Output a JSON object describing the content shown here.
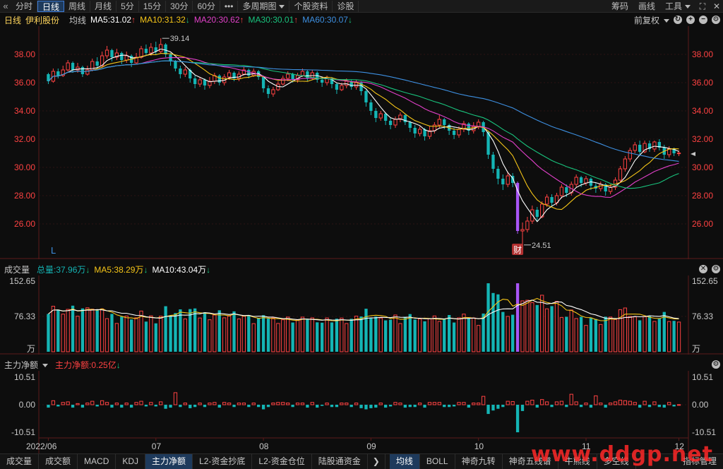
{
  "toolbar": {
    "left": [
      "分时",
      "日线",
      "周线",
      "月线",
      "5分",
      "15分",
      "30分",
      "60分",
      "•••",
      "多周期图",
      "个股资料",
      "诊股"
    ],
    "active_index": 1,
    "right": [
      "筹码",
      "画线",
      "工具"
    ]
  },
  "main_chart": {
    "period": "日线",
    "stock_name": "伊利股份",
    "ma_label": "均线",
    "ma5": "MA5:31.02",
    "ma10": "MA10:31.32",
    "ma20": "MA20:30.62",
    "ma30": "MA30:30.01",
    "ma60": "MA60:30.07",
    "adjust_label": "前复权",
    "high_label": "39.14",
    "low_label": "24.51",
    "cai_marker": "财",
    "l_marker": "L",
    "y_ticks": [
      "38.00",
      "36.00",
      "34.00",
      "32.00",
      "30.00",
      "28.00",
      "26.00"
    ]
  },
  "volume_panel": {
    "title": "成交量",
    "total": "总量:37.96万",
    "ma5": "MA5:38.29万",
    "ma10": "MA10:43.04万",
    "y_ticks": [
      "152.65",
      "76.33",
      "万"
    ]
  },
  "fund_panel": {
    "title": "主力净额",
    "value": "主力净额:0.25亿",
    "y_ticks": [
      "10.51",
      "0.00",
      "-10.51"
    ]
  },
  "x_axis": [
    "2022/06",
    "07",
    "08",
    "09",
    "10",
    "11",
    "12"
  ],
  "bottom_tabs": {
    "group1": [
      "成交量",
      "成交额",
      "MACD",
      "KDJ",
      "主力净额",
      "L2-资金抄底",
      "L2-资金仓位",
      "陆股通资金"
    ],
    "group1_active": 4,
    "group2": [
      "均线",
      "BOLL",
      "神奇九转",
      "神奇五线谱",
      "牛熊线",
      "多空线"
    ],
    "group2_active": 0,
    "right": "指标管理"
  },
  "watermark": "www.ddgp.net",
  "colors": {
    "up": "#ff4242",
    "down": "#14b5b5",
    "ma5": "#ffffff",
    "ma10": "#f5c518",
    "ma20": "#e040c8",
    "ma30": "#19c37d",
    "ma60": "#3d8fe0",
    "purple": "#a855f7"
  },
  "chart_data": {
    "type": "candlestick",
    "ylim": [
      24.0,
      39.5
    ],
    "points": [
      [
        36.6,
        36.1,
        36.7,
        35.9
      ],
      [
        36.1,
        36.8,
        37.0,
        36.0
      ],
      [
        36.8,
        36.5,
        37.0,
        36.3
      ],
      [
        36.5,
        36.9,
        37.2,
        36.4
      ],
      [
        36.9,
        37.4,
        37.6,
        36.8
      ],
      [
        37.4,
        36.9,
        37.5,
        36.7
      ],
      [
        36.9,
        37.1,
        37.4,
        36.7
      ],
      [
        37.1,
        36.6,
        37.2,
        36.4
      ],
      [
        36.6,
        36.9,
        37.2,
        36.5
      ],
      [
        36.9,
        37.5,
        37.7,
        36.8
      ],
      [
        37.5,
        37.2,
        37.8,
        37.0
      ],
      [
        37.2,
        37.9,
        38.2,
        37.1
      ],
      [
        37.9,
        38.3,
        38.6,
        37.7
      ],
      [
        38.3,
        37.8,
        38.4,
        37.5
      ],
      [
        37.8,
        38.1,
        38.4,
        37.6
      ],
      [
        38.1,
        37.6,
        38.2,
        37.3
      ],
      [
        37.6,
        37.9,
        38.2,
        37.4
      ],
      [
        37.9,
        37.4,
        38.0,
        37.1
      ],
      [
        37.4,
        37.8,
        38.1,
        37.3
      ],
      [
        37.8,
        38.4,
        38.6,
        37.7
      ],
      [
        38.4,
        38.1,
        38.7,
        37.9
      ],
      [
        38.1,
        38.5,
        38.8,
        37.9
      ],
      [
        38.5,
        38.2,
        38.9,
        38.0
      ],
      [
        38.2,
        38.7,
        39.14,
        38.1
      ],
      [
        38.7,
        38.0,
        38.8,
        37.8
      ],
      [
        38.0,
        37.5,
        38.1,
        37.2
      ],
      [
        37.5,
        37.0,
        37.6,
        36.8
      ],
      [
        37.0,
        36.6,
        37.2,
        36.3
      ],
      [
        36.6,
        36.9,
        37.1,
        36.4
      ],
      [
        36.9,
        36.3,
        37.0,
        36.0
      ],
      [
        36.3,
        35.9,
        36.5,
        35.6
      ],
      [
        35.9,
        36.2,
        36.4,
        35.7
      ],
      [
        36.2,
        35.8,
        36.3,
        35.5
      ],
      [
        35.8,
        36.1,
        36.4,
        35.6
      ],
      [
        36.1,
        36.5,
        36.7,
        35.9
      ],
      [
        36.5,
        36.0,
        36.6,
        35.8
      ],
      [
        36.0,
        36.4,
        36.6,
        35.8
      ],
      [
        36.4,
        36.7,
        36.9,
        36.2
      ],
      [
        36.7,
        36.3,
        36.8,
        36.1
      ],
      [
        36.3,
        36.6,
        36.8,
        36.1
      ],
      [
        36.6,
        36.9,
        37.1,
        36.5
      ],
      [
        36.9,
        36.5,
        37.0,
        36.3
      ],
      [
        36.5,
        36.8,
        37.0,
        36.4
      ],
      [
        36.8,
        36.4,
        36.9,
        36.2
      ],
      [
        36.4,
        35.6,
        36.5,
        35.3
      ],
      [
        35.6,
        35.2,
        35.8,
        34.9
      ],
      [
        35.2,
        35.5,
        35.7,
        35.0
      ],
      [
        35.5,
        35.9,
        36.1,
        35.4
      ],
      [
        35.9,
        36.3,
        36.5,
        35.8
      ],
      [
        36.3,
        36.6,
        36.8,
        36.1
      ],
      [
        36.6,
        36.2,
        36.7,
        36.0
      ],
      [
        36.2,
        36.5,
        36.7,
        36.0
      ],
      [
        36.5,
        36.8,
        37.0,
        36.4
      ],
      [
        36.8,
        36.3,
        36.9,
        36.1
      ],
      [
        36.3,
        36.7,
        36.9,
        36.2
      ],
      [
        36.7,
        36.2,
        36.8,
        36.0
      ],
      [
        36.2,
        36.0,
        36.4,
        35.7
      ],
      [
        36.0,
        36.3,
        36.5,
        35.8
      ],
      [
        36.3,
        35.9,
        36.4,
        35.6
      ],
      [
        35.9,
        35.5,
        36.0,
        35.2
      ],
      [
        35.5,
        35.8,
        36.0,
        35.4
      ],
      [
        35.8,
        36.1,
        36.3,
        35.6
      ],
      [
        36.1,
        35.7,
        36.2,
        35.5
      ],
      [
        35.7,
        36.0,
        36.2,
        35.5
      ],
      [
        36.0,
        35.4,
        36.1,
        35.1
      ],
      [
        35.4,
        34.6,
        35.5,
        34.3
      ],
      [
        34.6,
        34.0,
        34.8,
        33.7
      ],
      [
        34.0,
        33.5,
        34.2,
        33.2
      ],
      [
        33.5,
        33.8,
        34.0,
        33.3
      ],
      [
        33.8,
        33.3,
        33.9,
        33.0
      ],
      [
        33.3,
        33.0,
        33.5,
        32.7
      ],
      [
        33.0,
        33.4,
        33.6,
        32.8
      ],
      [
        33.4,
        33.7,
        33.9,
        33.2
      ],
      [
        33.7,
        33.2,
        33.8,
        33.0
      ],
      [
        33.2,
        32.8,
        33.3,
        32.5
      ],
      [
        32.8,
        32.4,
        33.0,
        32.1
      ],
      [
        32.4,
        32.7,
        32.9,
        32.2
      ],
      [
        32.7,
        32.2,
        32.8,
        31.9
      ],
      [
        32.2,
        32.6,
        32.9,
        32.0
      ],
      [
        32.6,
        33.0,
        33.2,
        32.4
      ],
      [
        33.0,
        33.4,
        33.7,
        32.8
      ],
      [
        33.4,
        33.0,
        33.5,
        32.7
      ],
      [
        33.0,
        32.6,
        33.1,
        32.3
      ],
      [
        32.6,
        32.3,
        32.8,
        32.0
      ],
      [
        32.3,
        32.7,
        32.9,
        32.1
      ],
      [
        32.7,
        33.1,
        33.3,
        32.5
      ],
      [
        33.1,
        32.6,
        33.2,
        32.3
      ],
      [
        32.6,
        32.9,
        33.2,
        32.4
      ],
      [
        32.9,
        33.2,
        33.4,
        32.7
      ],
      [
        33.2,
        32.5,
        33.3,
        32.2
      ],
      [
        32.5,
        30.9,
        32.6,
        30.6
      ],
      [
        30.9,
        29.9,
        31.1,
        29.6
      ],
      [
        29.9,
        29.2,
        30.1,
        28.8
      ],
      [
        29.2,
        28.8,
        29.5,
        28.4
      ],
      [
        28.8,
        29.4,
        29.7,
        28.6
      ],
      [
        29.4,
        28.9,
        29.6,
        28.6
      ],
      [
        28.9,
        25.5,
        29.0,
        25.3
      ],
      [
        25.5,
        25.6,
        26.1,
        24.51
      ],
      [
        25.6,
        26.2,
        26.5,
        25.4
      ],
      [
        26.2,
        27.0,
        27.3,
        26.0
      ],
      [
        27.0,
        26.5,
        27.2,
        26.2
      ],
      [
        26.5,
        27.4,
        27.6,
        26.4
      ],
      [
        27.4,
        27.9,
        28.1,
        27.2
      ],
      [
        27.9,
        27.5,
        28.1,
        27.2
      ],
      [
        27.5,
        28.0,
        28.2,
        27.3
      ],
      [
        28.0,
        28.6,
        28.8,
        27.8
      ],
      [
        28.6,
        28.2,
        28.8,
        27.9
      ],
      [
        28.2,
        28.8,
        29.0,
        28.0
      ],
      [
        28.8,
        29.3,
        29.5,
        28.6
      ],
      [
        29.3,
        28.9,
        29.4,
        28.6
      ],
      [
        28.9,
        29.2,
        29.4,
        28.7
      ],
      [
        29.2,
        28.7,
        29.3,
        28.4
      ],
      [
        28.7,
        28.5,
        28.9,
        28.2
      ],
      [
        28.5,
        28.8,
        29.0,
        28.3
      ],
      [
        28.8,
        28.3,
        28.9,
        28.0
      ],
      [
        28.3,
        28.6,
        28.8,
        28.1
      ],
      [
        28.6,
        29.1,
        29.3,
        28.4
      ],
      [
        29.1,
        29.9,
        30.1,
        28.9
      ],
      [
        29.9,
        30.6,
        30.8,
        29.7
      ],
      [
        30.6,
        31.2,
        31.4,
        30.4
      ],
      [
        31.2,
        31.6,
        31.8,
        31.0
      ],
      [
        31.6,
        31.1,
        31.9,
        30.9
      ],
      [
        31.1,
        31.7,
        31.9,
        31.0
      ],
      [
        31.7,
        31.3,
        31.9,
        31.1
      ],
      [
        31.3,
        31.8,
        31.9,
        31.1
      ],
      [
        31.8,
        31.4,
        32.0,
        31.2
      ],
      [
        31.4,
        30.9,
        31.6,
        30.6
      ],
      [
        30.9,
        31.3,
        31.5,
        30.7
      ],
      [
        31.3,
        31.0,
        31.4,
        30.8
      ],
      [
        31.0,
        31.02,
        31.2,
        30.8
      ]
    ]
  }
}
